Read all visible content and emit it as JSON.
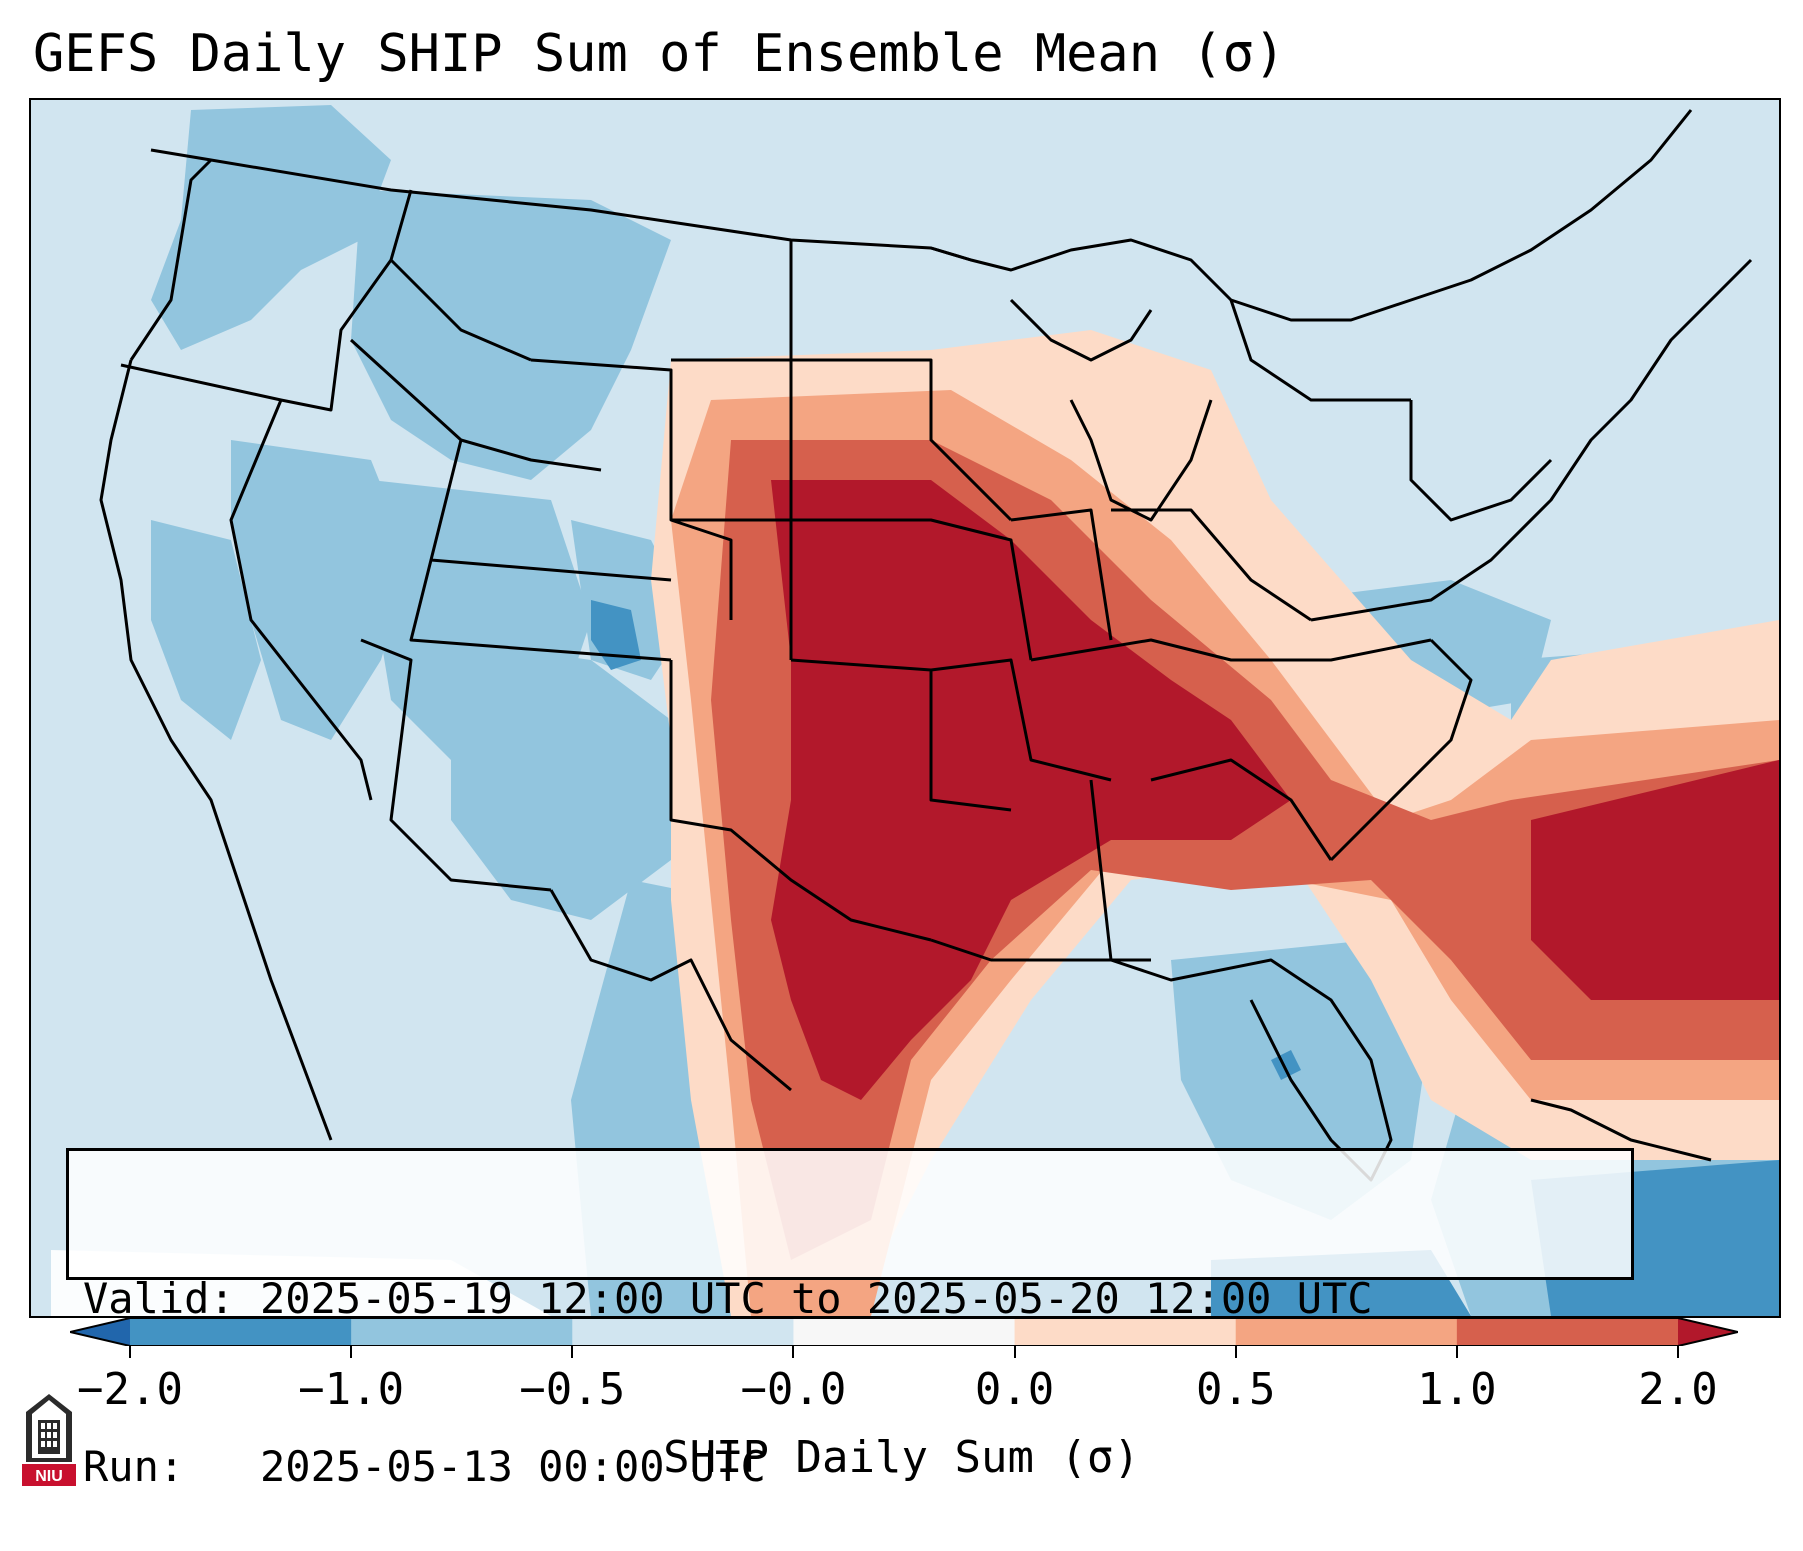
{
  "title": "GEFS Daily SHIP Sum of Ensemble Mean (σ)",
  "info": {
    "valid_line": "Valid: 2025-05-19 12:00 UTC to 2025-05-20 12:00 UTC",
    "run_line": "Run:   2025-05-13 00:00 UTC"
  },
  "colorbar": {
    "label": "SHIP Daily Sum (σ)",
    "ticks": [
      "−2.0",
      "−1.0",
      "−0.5",
      "−0.0",
      "0.0",
      "0.5",
      "1.0",
      "2.0"
    ],
    "bin_colors": [
      "#4393c3",
      "#92c5de",
      "#d1e5f0",
      "#f7f7f7",
      "#fddbc7",
      "#f4a582",
      "#d6604d"
    ],
    "under_color": "#2166ac",
    "over_color": "#b2182b"
  },
  "logo": {
    "text": "NIU",
    "icon": "niu-tower-logo-icon"
  },
  "colors": {
    "strong_negative": "#4393c3",
    "negative": "#92c5de",
    "weak_negative": "#d1e5f0",
    "weak_positive": "#fddbc7",
    "positive": "#f4a582",
    "moderate_positive": "#d6604d",
    "strong_positive": "#b2182b"
  }
}
